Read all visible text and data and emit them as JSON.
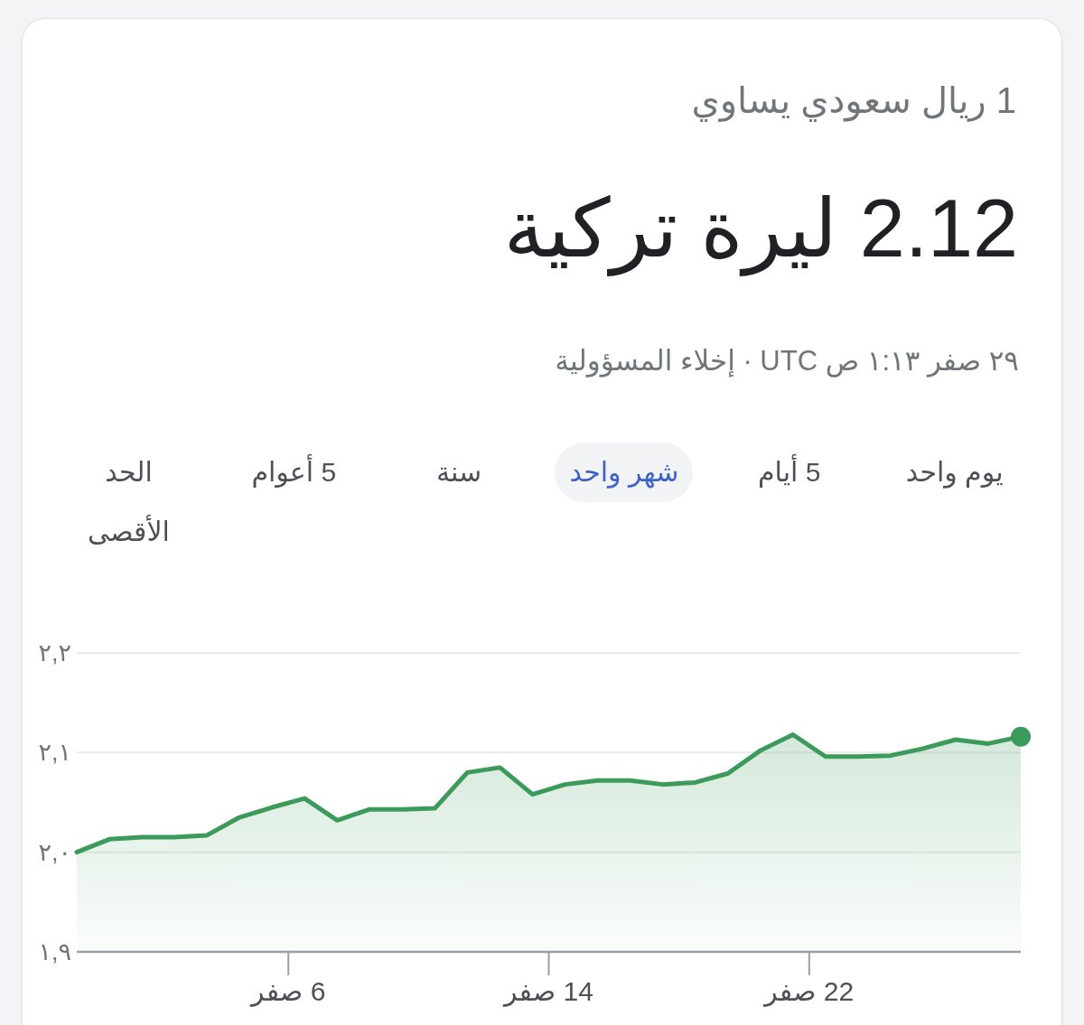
{
  "chart_data": {
    "type": "area",
    "title": "2.12 ليرة تركية",
    "subtitle": "1 ريال سعودي يساوي",
    "annotations": [
      "٢٩ صفر ١:١٣ ص UTC · إخلاء المسؤولية",
      "يوم واحد",
      "5 أيام",
      "شهر واحد",
      "سنة",
      "5 أعوام",
      "الحد الأقصى"
    ],
    "x": [
      -0.5,
      0.5,
      1.5,
      2.5,
      3.5,
      4.5,
      5.5,
      6.5,
      7.5,
      8.5,
      9.5,
      10.5,
      11.5,
      12.5,
      13.5,
      14.5,
      15.5,
      16.5,
      17.5,
      18.5,
      19.5,
      20.5,
      21.5,
      22.5,
      23.5,
      24.5,
      25.5,
      26.5,
      27.5,
      28.5
    ],
    "series": [
      {
        "color": "#3c9a5b",
        "values": [
          2.0,
          2.013,
          2.015,
          2.015,
          2.017,
          2.035,
          2.045,
          2.054,
          2.032,
          2.043,
          2.043,
          2.044,
          2.08,
          2.085,
          2.058,
          2.068,
          2.072,
          2.072,
          2.068,
          2.07,
          2.079,
          2.102,
          2.118,
          2.096,
          2.096,
          2.097,
          2.104,
          2.113,
          2.109,
          2.116
        ]
      },
      {
        "type": "scatter",
        "color": "#3c9a5b",
        "x": [
          28.5
        ],
        "values": [
          2.116
        ]
      }
    ],
    "xlim": [
      -0.5,
      28.5
    ],
    "xticks": [
      {
        "value": 6,
        "label": "6 صفر"
      },
      {
        "value": 14,
        "label": "14 صفر"
      },
      {
        "value": 22,
        "label": "22 صفر"
      }
    ],
    "ylim": [
      1.9,
      2.2
    ],
    "yticks": [
      {
        "value": 1.9,
        "label": "١,٩"
      },
      {
        "value": 2.0,
        "label": "٢,٠"
      },
      {
        "value": 2.1,
        "label": "٢,١"
      },
      {
        "value": 2.2,
        "label": "٢,٢"
      }
    ],
    "grid": "y"
  }
}
